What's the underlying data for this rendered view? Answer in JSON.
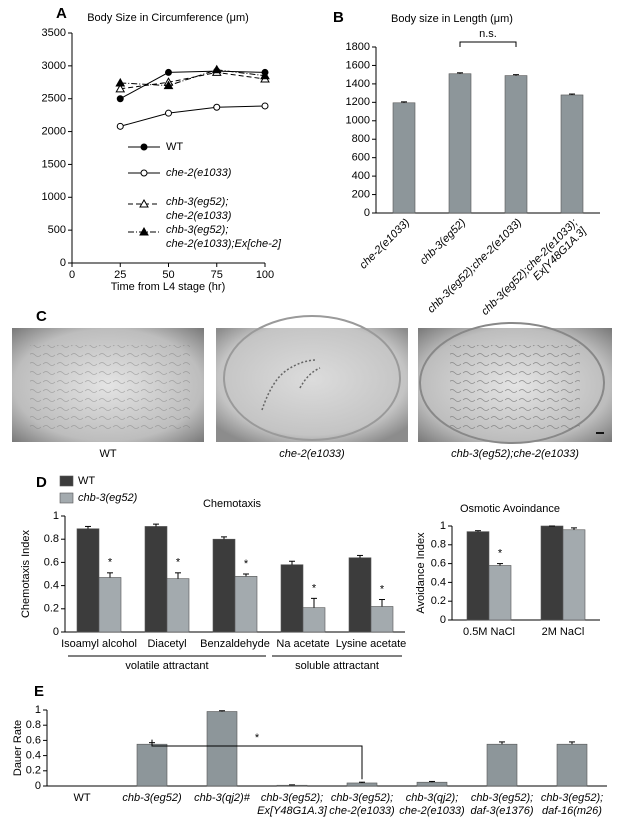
{
  "panel_labels": [
    "A",
    "B",
    "C",
    "D",
    "E"
  ],
  "images": {
    "captions": [
      "WT",
      "che-2(e1033)",
      "chb-3(eg52);che-2(e1033)"
    ]
  },
  "chart_data": [
    {
      "type": "line",
      "title": "Body Size in Circumference (μm)",
      "xlabel": "Time from L4 stage (hr)",
      "x": [
        25,
        50,
        75,
        100
      ],
      "xlim": [
        0,
        100
      ],
      "xticks": [
        0,
        25,
        50,
        75,
        100
      ],
      "ylim": [
        0,
        3500
      ],
      "yticks": [
        0,
        500,
        1000,
        1500,
        2000,
        2500,
        3000,
        3500
      ],
      "series": [
        {
          "name": "WT",
          "color": "#000000",
          "marker": "circle-filled",
          "line_style": "solid",
          "values": [
            2500,
            2900,
            2920,
            2900
          ]
        },
        {
          "name": "che-2(e1033)",
          "color": "#000000",
          "marker": "circle-open",
          "line_style": "solid",
          "values": [
            2080,
            2280,
            2370,
            2390
          ]
        },
        {
          "name": [
            "chb-3(eg52);",
            "che-2(e1033)"
          ],
          "color": "#000000",
          "marker": "triangle-open",
          "line_style": "dashed",
          "values": [
            2650,
            2750,
            2900,
            2800
          ]
        },
        {
          "name": [
            "chb-3(eg52);",
            "che-2(e1033);Ex[che-2]"
          ],
          "color": "#000000",
          "marker": "triangle-filled",
          "line_style": "dashdot",
          "values": [
            2740,
            2700,
            2940,
            2850
          ]
        }
      ]
    },
    {
      "type": "bar",
      "title": "Body size in Length (μm)",
      "categories": [
        "che-2(e1033)",
        "chb-3(eg52)",
        "chb-3(eg52);che-2(e1033)",
        [
          "chb-3(eg52);che-2(e1033);",
          "Ex[Y48G1A.3]"
        ]
      ],
      "values": [
        1195,
        1510,
        1490,
        1280
      ],
      "errors": [
        10,
        10,
        10,
        10
      ],
      "color": "#8d969a",
      "ylim": [
        0,
        1800
      ],
      "yticks": [
        0,
        200,
        400,
        600,
        800,
        1000,
        1200,
        1400,
        1600,
        1800
      ],
      "annotation": "n.s."
    },
    {
      "type": "bar",
      "title": "Chemotaxis",
      "ylabel": "Chemotaxis Index",
      "categories": [
        "Isoamyl alcohol",
        "Diacetyl",
        "Benzaldehyde",
        "Na acetate",
        "Lysine acetate"
      ],
      "group_labels": [
        "volatile attractant",
        "soluble attractant"
      ],
      "ylim": [
        0,
        1
      ],
      "yticks": [
        0,
        0.2,
        0.4,
        0.6,
        0.8,
        1
      ],
      "series": [
        {
          "name": "WT",
          "color": "#3c3c3c",
          "values": [
            0.89,
            0.91,
            0.8,
            0.58,
            0.64
          ],
          "errors": [
            0.02,
            0.02,
            0.02,
            0.03,
            0.02
          ]
        },
        {
          "name": "chb-3(eg52)",
          "color": "#a3aaae",
          "values": [
            0.47,
            0.46,
            0.48,
            0.21,
            0.22
          ],
          "errors": [
            0.04,
            0.05,
            0.02,
            0.08,
            0.06
          ],
          "marks": [
            "*",
            "*",
            "*",
            "*",
            "*"
          ]
        }
      ]
    },
    {
      "type": "bar",
      "title": "Osmotic Avoindance",
      "ylabel": "Avoidance Index",
      "categories": [
        "0.5M NaCl",
        "2M NaCl"
      ],
      "ylim": [
        0,
        1
      ],
      "yticks": [
        0,
        0.2,
        0.4,
        0.6,
        0.8,
        1
      ],
      "series": [
        {
          "color": "#3c3c3c",
          "values": [
            0.94,
            1
          ],
          "errors": [
            0.01,
            0
          ]
        },
        {
          "color": "#a3aaae",
          "values": [
            0.58,
            0.96
          ],
          "errors": [
            0.02,
            0.02
          ],
          "marks": [
            "*",
            null
          ]
        }
      ]
    },
    {
      "type": "bar",
      "ylabel": "Dauer Rate",
      "categories": [
        "WT",
        "chb-3(eg52)",
        "chb-3(qj2)#",
        [
          "chb-3(eg52);",
          "Ex[Y48G1A.3]"
        ],
        [
          "chb-3(eg52);",
          "che-2(e1033)"
        ],
        [
          "chb-3(qj2);",
          "che-2(e1033)"
        ],
        [
          "chb-3(eg52);",
          "daf-3(e1376)"
        ],
        [
          "chb-3(eg52);",
          "daf-16(m26)"
        ]
      ],
      "values": [
        0,
        0.55,
        0.98,
        0.01,
        0.04,
        0.05,
        0.55,
        0.55
      ],
      "errors": [
        0,
        0.02,
        0.01,
        0.005,
        0.01,
        0.01,
        0.03,
        0.03
      ],
      "color": "#8d969a",
      "ylim": [
        0,
        1
      ],
      "yticks": [
        0,
        0.2,
        0.4,
        0.6,
        0.8,
        1
      ],
      "annotation": "*"
    }
  ]
}
